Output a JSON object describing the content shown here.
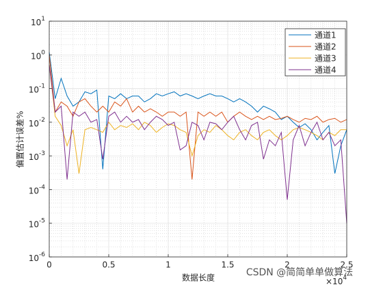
{
  "chart_data": {
    "type": "line",
    "xlabel": "数据长度",
    "ylabel": "偏置估计误差%",
    "x_multiplier": "×10^4",
    "watermark": "CSDN @简简单单做算法",
    "log_y": true,
    "grid": true,
    "minor_grid": true,
    "legend_position": "top-right",
    "xlim": [
      0,
      2.5
    ],
    "xticks": [
      0,
      0.5,
      1,
      1.5,
      2,
      2.5
    ],
    "ylim": [
      1e-06,
      10
    ],
    "yticks": [
      {
        "value": 1e-06,
        "label": "10^-6"
      },
      {
        "value": 1e-05,
        "label": "10^-5"
      },
      {
        "value": 0.0001,
        "label": "10^-4"
      },
      {
        "value": 0.001,
        "label": "10^-3"
      },
      {
        "value": 0.01,
        "label": "10^-2"
      },
      {
        "value": 0.1,
        "label": "10^-1"
      },
      {
        "value": 1,
        "label": "10^0"
      },
      {
        "value": 10,
        "label": "10^1"
      }
    ],
    "x": [
      0,
      0.05,
      0.1,
      0.15,
      0.2,
      0.25,
      0.3,
      0.35,
      0.4,
      0.45,
      0.5,
      0.55,
      0.6,
      0.65,
      0.7,
      0.75,
      0.8,
      0.85,
      0.9,
      0.95,
      1,
      1.05,
      1.1,
      1.15,
      1.2,
      1.25,
      1.3,
      1.35,
      1.4,
      1.45,
      1.5,
      1.55,
      1.6,
      1.65,
      1.7,
      1.75,
      1.8,
      1.85,
      1.9,
      1.95,
      2,
      2.05,
      2.1,
      2.15,
      2.2,
      2.25,
      2.3,
      2.35,
      2.4,
      2.45,
      2.5
    ],
    "series": [
      {
        "name": "通道1",
        "color": "#0072BD",
        "values": [
          1.2,
          0.05,
          0.2,
          0.06,
          0.03,
          0.04,
          0.08,
          0.07,
          0.09,
          0.0004,
          0.06,
          0.05,
          0.07,
          0.05,
          0.06,
          0.06,
          0.04,
          0.05,
          0.07,
          0.06,
          0.07,
          0.08,
          0.06,
          0.07,
          0.06,
          0.05,
          0.06,
          0.07,
          0.06,
          0.06,
          0.05,
          0.04,
          0.05,
          0.04,
          0.03,
          0.02,
          0.03,
          0.025,
          0.02,
          0.012,
          0.015,
          0.01,
          0.007,
          0.009,
          0.006,
          0.003,
          0.005,
          0.008,
          0.0003,
          0.002,
          0.006
        ]
      },
      {
        "name": "通道2",
        "color": "#D95319",
        "values": [
          1.0,
          0.02,
          0.04,
          0.03,
          0.015,
          0.04,
          0.05,
          0.03,
          0.02,
          0.03,
          0.02,
          0.04,
          0.03,
          0.05,
          0.02,
          0.03,
          0.02,
          0.025,
          0.02,
          0.015,
          0.02,
          0.02,
          0.015,
          0.02,
          0.0002,
          0.02,
          0.015,
          0.02,
          0.015,
          0.02,
          0.01,
          0.015,
          0.02,
          0.015,
          0.012,
          0.015,
          0.012,
          0.015,
          0.012,
          0.013,
          0.015,
          0.012,
          0.01,
          0.013,
          0.012,
          0.015,
          0.01,
          0.012,
          0.013,
          0.01,
          0.012
        ]
      },
      {
        "name": "通道3",
        "color": "#EDB120",
        "values": [
          0.5,
          0.015,
          0.008,
          0.002,
          0.006,
          0.0003,
          0.006,
          0.007,
          0.006,
          0.005,
          0.01,
          0.006,
          0.008,
          0.007,
          0.009,
          0.006,
          0.01,
          0.008,
          0.005,
          0.007,
          0.009,
          0.008,
          0.006,
          0.005,
          0.001,
          0.004,
          0.006,
          0.005,
          0.008,
          0.006,
          0.004,
          0.003,
          0.005,
          0.006,
          0.004,
          0.003,
          0.005,
          0.006,
          0.004,
          0.003,
          0.004,
          0.006,
          0.007,
          0.006,
          0.005,
          0.004,
          0.003,
          0.005,
          0.004,
          0.006,
          0.006
        ]
      },
      {
        "name": "通道4",
        "color": "#7E2F8E",
        "values": [
          0.5,
          0.02,
          0.03,
          0.0002,
          0.02,
          0.015,
          0.02,
          0.01,
          0.012,
          0.0008,
          0.015,
          0.02,
          0.01,
          0.015,
          0.01,
          0.012,
          0.006,
          0.01,
          0.015,
          0.012,
          0.008,
          0.01,
          0.0015,
          0.002,
          0.01,
          0.008,
          0.003,
          0.01,
          0.009,
          0.006,
          0.01,
          0.015,
          0.006,
          0.003,
          0.008,
          0.01,
          0.0008,
          0.003,
          0.002,
          0.005,
          5e-05,
          0.003,
          0.008,
          0.002,
          0.005,
          0.01,
          0.003,
          0.005,
          0.002,
          0.003,
          1e-05
        ]
      }
    ]
  }
}
